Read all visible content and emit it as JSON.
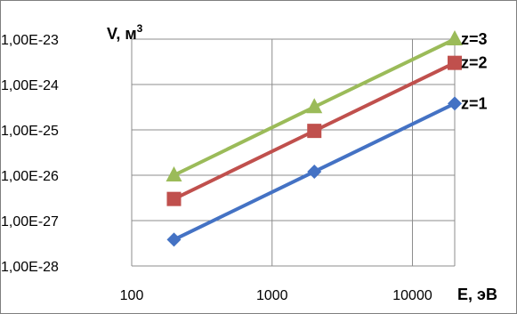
{
  "chart_data": {
    "type": "line",
    "x_scale": "log",
    "y_scale": "log",
    "x": [
      200,
      2000,
      20000
    ],
    "xlim": [
      100,
      20000
    ],
    "ylim": [
      1e-28,
      1e-23
    ],
    "x_ticks": [
      "100",
      "1000",
      "10000"
    ],
    "y_ticks": [
      "1,00E-28",
      "1,00E-27",
      "1,00E-26",
      "1,00E-25",
      "1,00E-24",
      "1,00E-23"
    ],
    "xlabel": "E, эВ",
    "ylabel": "V, м",
    "ylabel_sup": "3",
    "grid": true,
    "series": [
      {
        "name": "z=1",
        "values": [
          3.8e-28,
          1.2e-26,
          3.8e-25
        ],
        "color": "#4472C4",
        "marker": "diamond"
      },
      {
        "name": "z=2",
        "values": [
          3e-27,
          9.5e-26,
          3e-24
        ],
        "color": "#C0504D",
        "marker": "square"
      },
      {
        "name": "z=3",
        "values": [
          1e-26,
          3.2e-25,
          1e-23
        ],
        "color": "#9BBB59",
        "marker": "triangle"
      }
    ]
  }
}
